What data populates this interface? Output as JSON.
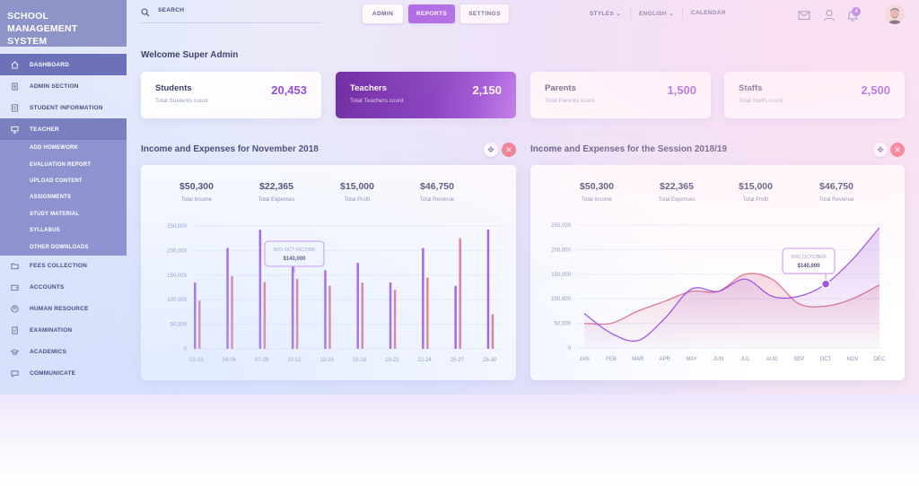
{
  "brand": {
    "title": "SCHOOL MANAGEMENT SYSTEM"
  },
  "sidebar": {
    "items": [
      {
        "label": "DASHBOARD",
        "icon": "home-icon"
      },
      {
        "label": "ADMIN SECTION",
        "icon": "document-icon"
      },
      {
        "label": "STUDENT INFORMATION",
        "icon": "id-card-icon"
      },
      {
        "label": "TEACHER",
        "icon": "presentation-icon"
      }
    ],
    "teacher_submenu": [
      "ADD HOMEWORK",
      "EVALUATION REPORT",
      "UPLOAD CONTENT",
      "ASSIGNMENTS",
      "STUDY MATERIAL",
      "SYLLABUS",
      "OTHER DOWNLOADS"
    ],
    "items_after": [
      {
        "label": "FEES COLLECTION",
        "icon": "folder-icon"
      },
      {
        "label": "ACCOUNTS",
        "icon": "wallet-icon"
      },
      {
        "label": "HUMAN RESOURCE",
        "icon": "person-icon"
      },
      {
        "label": "EXAMINATION",
        "icon": "exam-icon"
      },
      {
        "label": "ACADEMICS",
        "icon": "graduation-cap-icon"
      },
      {
        "label": "COMMUNICATE",
        "icon": "chat-icon"
      }
    ]
  },
  "header": {
    "search_placeholder": "SEARCH",
    "tabs": [
      {
        "label": "ADMIN"
      },
      {
        "label": "REPORTS",
        "selected": true
      },
      {
        "label": "SETTINGS"
      }
    ],
    "menus": [
      "STYLES",
      "ENGLISH",
      "CALENDAR"
    ],
    "notification_count": "4",
    "icons": [
      "mail-icon",
      "user-icon",
      "bell-icon"
    ]
  },
  "welcome": "Welcome Super Admin",
  "stats": [
    {
      "label": "Students",
      "sub": "Total Students count",
      "value": "20,453"
    },
    {
      "label": "Teachers",
      "sub": "Total Teachers count",
      "value": "2,150",
      "highlight": true
    },
    {
      "label": "Parents",
      "sub": "Total Parents count",
      "value": "1,500"
    },
    {
      "label": "Staffs",
      "sub": "Total Staffs count",
      "value": "2,500"
    }
  ],
  "panels": [
    {
      "title": "Income and Expenses for November 2018",
      "summary": [
        {
          "value": "$50,300",
          "label": "Total Income"
        },
        {
          "value": "$22,365",
          "label": "Total Expenses"
        },
        {
          "value": "$15,000",
          "label": "Total Profit"
        },
        {
          "value": "$46,750",
          "label": "Total Revenue"
        }
      ]
    },
    {
      "title": "Income and Expenses for the Session 2018/19",
      "summary": [
        {
          "value": "$50,300",
          "label": "Total Income"
        },
        {
          "value": "$22,365",
          "label": "Total Expenses"
        },
        {
          "value": "$15,000",
          "label": "Total Profit"
        },
        {
          "value": "$46,750",
          "label": "Total Revenue"
        }
      ]
    }
  ],
  "chart_data": [
    {
      "type": "bar",
      "categories": [
        "01-03",
        "04-06",
        "07-09",
        "10-12",
        "13-15",
        "16-18",
        "19-21",
        "22-24",
        "25-27",
        "28-30"
      ],
      "yticks": [
        "0",
        "50,000",
        "100,000",
        "150,000",
        "200,000",
        "250,000"
      ],
      "ylim": [
        0,
        250000
      ],
      "series": [
        {
          "values": [
            135000,
            205000,
            242000,
            170000,
            160000,
            175000,
            135000,
            205000,
            128000,
            243000
          ],
          "color": "#9b4fe0"
        },
        {
          "values": [
            98000,
            148000,
            136000,
            142000,
            128000,
            135000,
            120000,
            145000,
            225000,
            70000
          ],
          "color": "#e0708a"
        }
      ],
      "annotation": {
        "title": "3RD OCT INCOME",
        "value": "$140,000"
      },
      "grid": "horizontal"
    },
    {
      "type": "line",
      "categories": [
        "JAN",
        "FEB",
        "MAR",
        "APR",
        "MAY",
        "JUN",
        "JUL",
        "AUG",
        "SEP",
        "OCT",
        "NOV",
        "DEC"
      ],
      "yticks": [
        "0",
        "50,000",
        "100,000",
        "150,000",
        "200,000",
        "250,000"
      ],
      "ylim": [
        0,
        250000
      ],
      "series": [
        {
          "values": [
            70000,
            30000,
            15000,
            60000,
            120000,
            115000,
            140000,
            105000,
            105000,
            130000,
            180000,
            245000
          ],
          "color": "#9b4fe0"
        },
        {
          "values": [
            50000,
            50000,
            75000,
            95000,
            115000,
            115000,
            150000,
            140000,
            90000,
            85000,
            100000,
            128000
          ],
          "color": "#e0708a"
        }
      ],
      "annotation": {
        "title": "3RD OCTOBER",
        "value": "$140,000"
      },
      "grid": "horizontal"
    }
  ]
}
